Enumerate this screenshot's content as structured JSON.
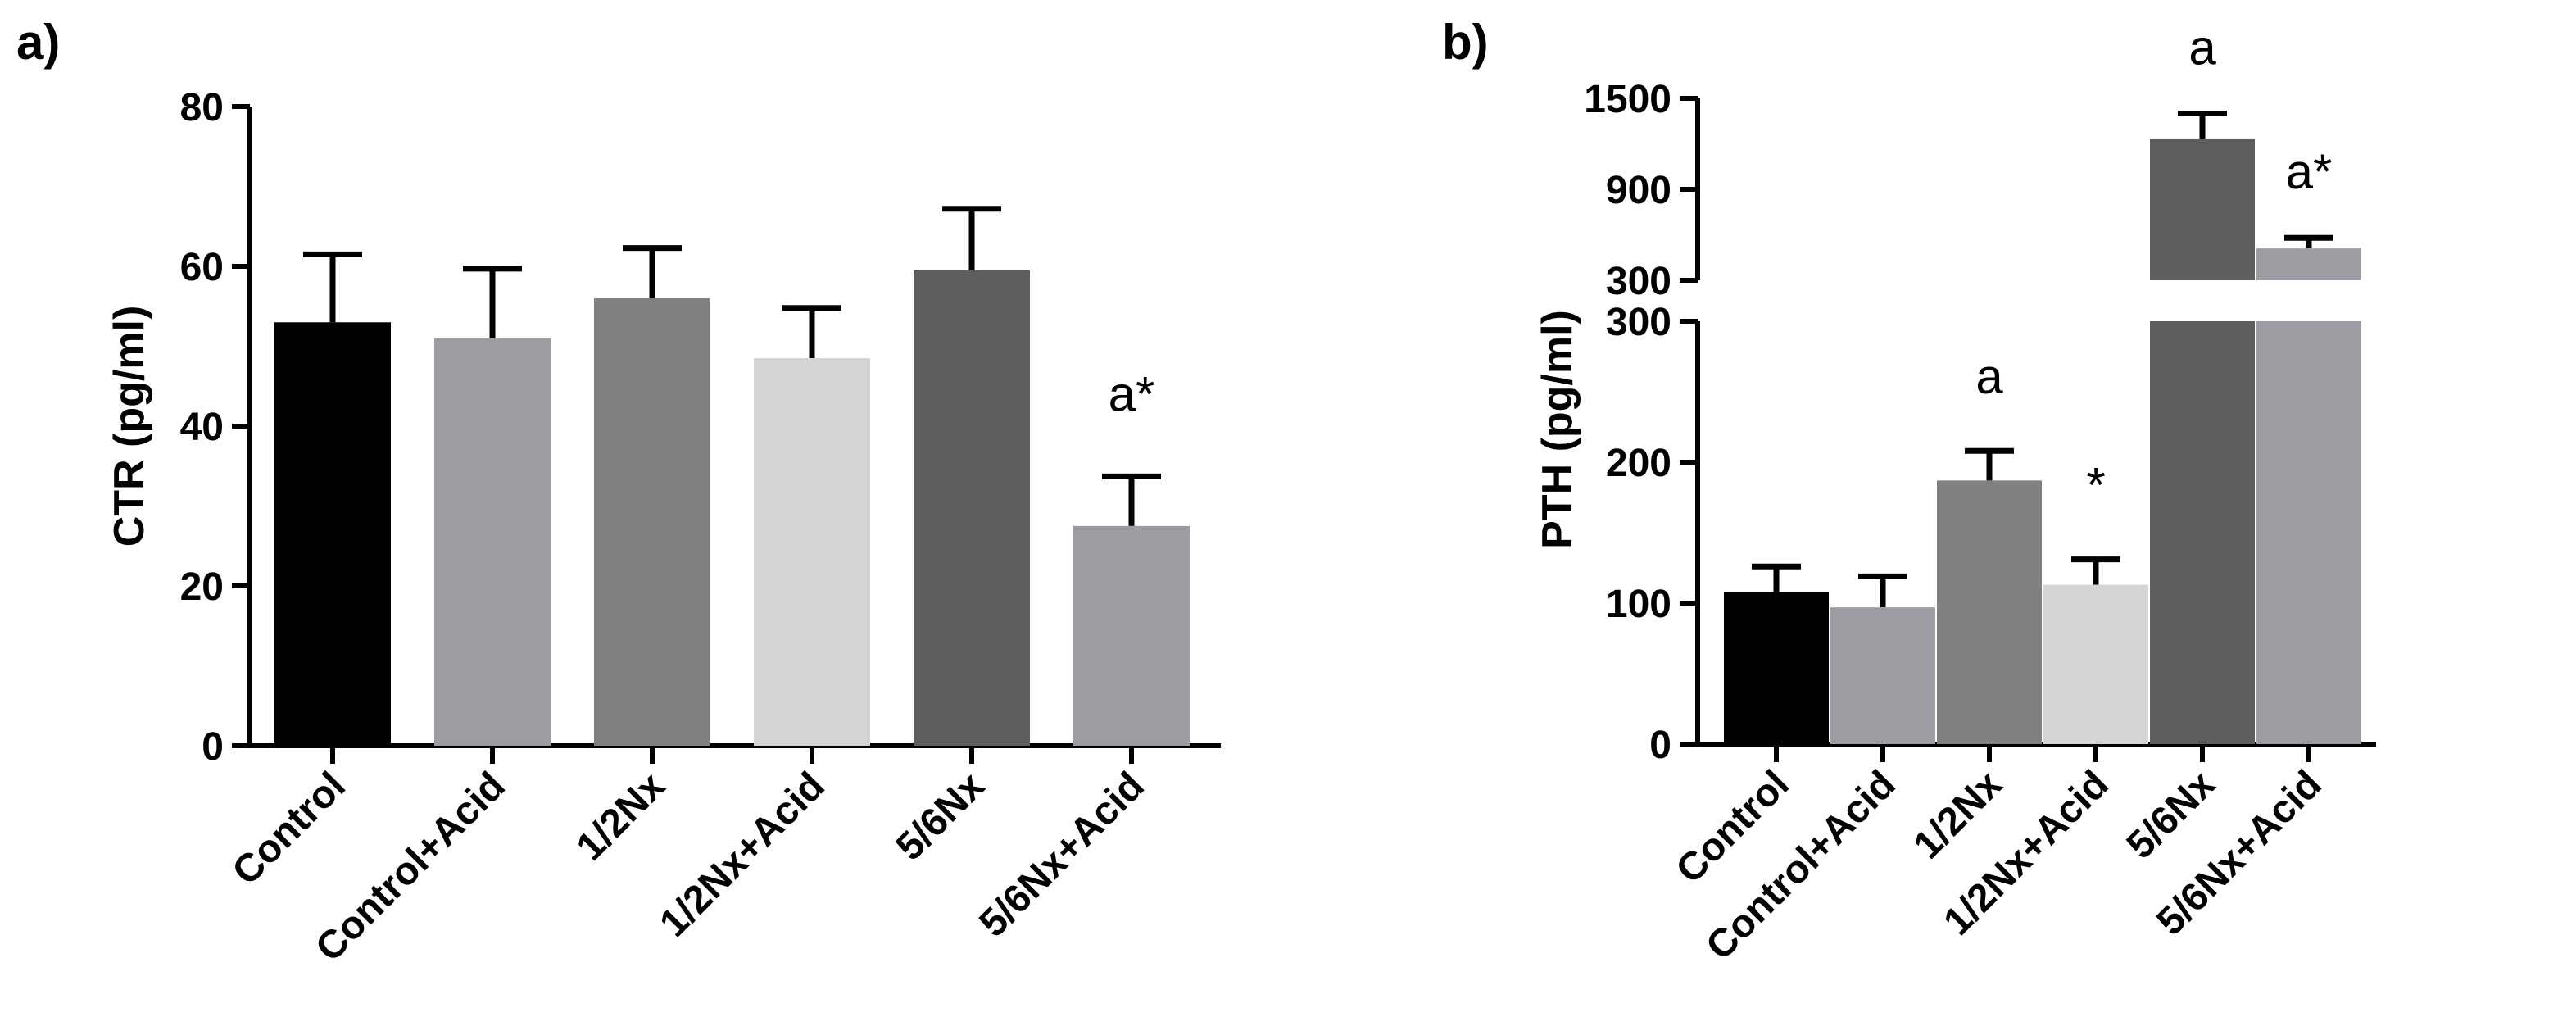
{
  "chart_data": [
    {
      "type": "bar",
      "panel_label": "a)",
      "ylabel": "CTR (pg/ml)",
      "ylim": [
        0,
        80
      ],
      "yticks": [
        0,
        20,
        40,
        60,
        80
      ],
      "categories": [
        "Control",
        "Control+Acid",
        "1/2Nx",
        "1/2Nx+Acid",
        "5/6Nx",
        "5/6Nx+Acid"
      ],
      "values": [
        53,
        51,
        56,
        48.5,
        59.5,
        27.5
      ],
      "errors": [
        8.5,
        8.7,
        6.3,
        6.3,
        7.7,
        6.2
      ],
      "colors": [
        "#000000",
        "#9c9ca2",
        "#808080",
        "#d4d4d4",
        "#5e5e5e",
        "#9c9ca2"
      ],
      "annotations": [
        "",
        "",
        "",
        "",
        "",
        "a*"
      ]
    },
    {
      "type": "bar",
      "panel_label": "b)",
      "ylabel": "PTH (pg/ml)",
      "broken_axis": true,
      "lower_ylim": [
        0,
        300
      ],
      "lower_yticks": [
        0,
        100,
        200,
        300
      ],
      "upper_ylim": [
        300,
        1500
      ],
      "upper_yticks": [
        300,
        900,
        1500
      ],
      "categories": [
        "Control",
        "Control+Acid",
        "1/2Nx",
        "1/2Nx+Acid",
        "5/6Nx",
        "5/6Nx+Acid"
      ],
      "values": [
        108,
        97,
        187,
        113,
        1230,
        510
      ],
      "errors": [
        18,
        22,
        21,
        18,
        170,
        70
      ],
      "colors": [
        "#000000",
        "#9c9ca2",
        "#808080",
        "#d4d4d4",
        "#5e5e5e",
        "#9c9ca2"
      ],
      "annotations": [
        "",
        "",
        "a",
        "*",
        "a",
        "a*"
      ]
    }
  ]
}
